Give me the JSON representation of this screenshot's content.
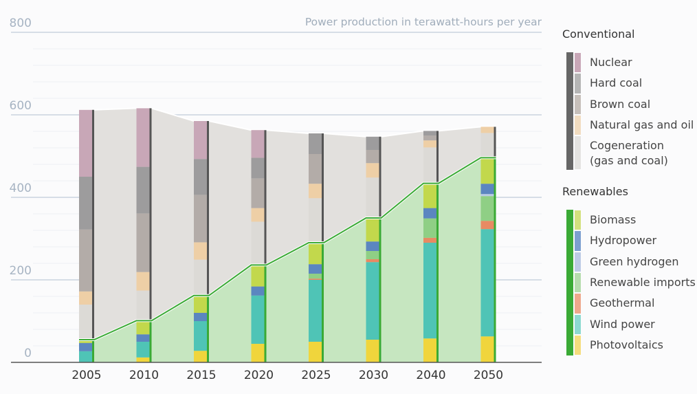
{
  "chart_data": {
    "type": "bar",
    "subtype": "stacked-bar-with-area",
    "title": "",
    "unit_label": "Power production in terawatt-hours per year",
    "xlabel": "",
    "ylabel": "Power production in terawatt-hours per year",
    "ylim": [
      0,
      800
    ],
    "yticks": [
      0,
      200,
      400,
      600,
      800
    ],
    "minor_grid_step": 40,
    "grid": true,
    "legend_position": "right",
    "categories": [
      "2005",
      "2010",
      "2015",
      "2020",
      "2025",
      "2030",
      "2040",
      "2050"
    ],
    "groups": [
      {
        "name": "Conventional",
        "color": "#666666",
        "series": [
          "Nuclear",
          "Hard coal",
          "Brown coal",
          "Natural gas and oil",
          "Cogeneration (gas and coal)"
        ]
      },
      {
        "name": "Renewables",
        "color": "#3aaa35",
        "series": [
          "Biomass",
          "Hydropower",
          "Green hydrogen",
          "Renewable imports",
          "Geothermal",
          "Wind power",
          "Photovoltaics"
        ]
      }
    ],
    "stack_order": [
      "Photovoltaics",
      "Wind power",
      "Geothermal",
      "Renewable imports",
      "Green hydrogen",
      "Hydropower",
      "Biomass",
      "Cogeneration (gas and coal)",
      "Natural gas and oil",
      "Brown coal",
      "Hard coal",
      "Nuclear"
    ],
    "series": [
      {
        "name": "Photovoltaics",
        "group": "Renewables",
        "color": "#f0d53c",
        "values": [
          0,
          12,
          28,
          45,
          50,
          55,
          58,
          63
        ]
      },
      {
        "name": "Wind power",
        "group": "Renewables",
        "color": "#4fc4b6",
        "values": [
          27,
          38,
          72,
          117,
          150,
          188,
          232,
          260
        ]
      },
      {
        "name": "Geothermal",
        "group": "Renewables",
        "color": "#e88a63",
        "values": [
          0,
          0,
          0,
          0,
          3,
          7,
          12,
          20
        ]
      },
      {
        "name": "Renewable imports",
        "group": "Renewables",
        "color": "#8fcf85",
        "values": [
          0,
          0,
          0,
          0,
          12,
          20,
          47,
          60
        ]
      },
      {
        "name": "Green hydrogen",
        "group": "Renewables",
        "color": "#b9cbe6",
        "values": [
          0,
          0,
          0,
          0,
          0,
          0,
          0,
          5
        ]
      },
      {
        "name": "Hydropower",
        "group": "Renewables",
        "color": "#5b86c0",
        "values": [
          20,
          18,
          20,
          22,
          23,
          23,
          25,
          25
        ]
      },
      {
        "name": "Biomass",
        "group": "Renewables",
        "color": "#c2d84c",
        "values": [
          8,
          33,
          42,
          52,
          52,
          57,
          60,
          63
        ]
      },
      {
        "name": "Cogeneration (gas and coal)",
        "group": "Conventional",
        "color": "#dcdad6",
        "values": [
          85,
          73,
          87,
          105,
          108,
          98,
          87,
          60
        ]
      },
      {
        "name": "Natural gas and oil",
        "group": "Conventional",
        "color": "#eecfa6",
        "values": [
          32,
          45,
          42,
          33,
          35,
          35,
          17,
          15
        ]
      },
      {
        "name": "Brown coal",
        "group": "Conventional",
        "color": "#b3aca8",
        "values": [
          150,
          142,
          115,
          72,
          72,
          32,
          12,
          0
        ]
      },
      {
        "name": "Hard coal",
        "group": "Conventional",
        "color": "#9d9c9d",
        "values": [
          128,
          113,
          87,
          50,
          50,
          32,
          11,
          0
        ]
      },
      {
        "name": "Nuclear",
        "group": "Conventional",
        "color": "#c8a7b7",
        "values": [
          162,
          142,
          92,
          67,
          0,
          0,
          0,
          0
        ]
      }
    ],
    "totals": {
      "renewables": [
        55,
        101,
        162,
        236,
        290,
        350,
        433,
        497
      ],
      "overall": [
        612,
        617,
        585,
        563,
        555,
        547,
        560,
        572
      ]
    },
    "area_colors": {
      "total_area": "#e2e0dd",
      "renewable_area": "#c6e6c0",
      "renewable_line": "#3aaa35",
      "conventional_edge": "#555555"
    }
  },
  "legend": {
    "conventional": {
      "title": "Conventional",
      "group_color": "#666666",
      "items": [
        {
          "label": "Nuclear",
          "color": "#c8a7b7"
        },
        {
          "label": "Hard coal",
          "color": "#b5b5b5"
        },
        {
          "label": "Brown coal",
          "color": "#c6bfba"
        },
        {
          "label": "Natural gas and oil",
          "color": "#f1dcc0"
        },
        {
          "label_line1": "Cogeneration",
          "label_line2": "(gas and coal)",
          "color": "#e4e3e1"
        }
      ]
    },
    "renewables": {
      "title": "Renewables",
      "group_color": "#3aaa35",
      "items": [
        {
          "label": "Biomass",
          "color": "#d3e07e"
        },
        {
          "label": "Hydropower",
          "color": "#7c9fcf"
        },
        {
          "label": "Green hydrogen",
          "color": "#bdcbe5"
        },
        {
          "label": "Renewable imports",
          "color": "#b5dcad"
        },
        {
          "label": "Geothermal",
          "color": "#eea88c"
        },
        {
          "label": "Wind power",
          "color": "#8dd9d0"
        },
        {
          "label": "Photovoltaics",
          "color": "#f5dd7e"
        }
      ]
    }
  }
}
